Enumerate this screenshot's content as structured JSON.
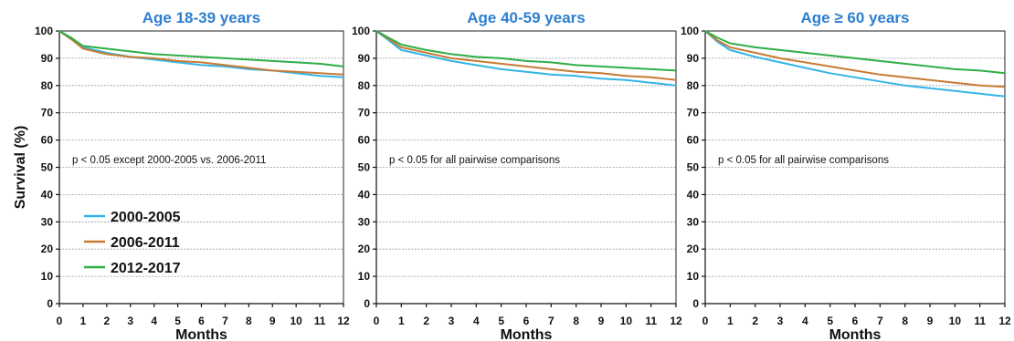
{
  "chart_data": [
    {
      "type": "line",
      "title": "Age 18-39 years",
      "xlabel": "Months",
      "ylabel": "Survival (%)",
      "xlim": [
        0,
        12
      ],
      "ylim": [
        0,
        100
      ],
      "x_ticks": [
        0,
        1,
        2,
        3,
        4,
        5,
        6,
        7,
        8,
        9,
        10,
        11,
        12
      ],
      "y_ticks": [
        0,
        10,
        20,
        30,
        40,
        50,
        60,
        70,
        80,
        90,
        100
      ],
      "grid": true,
      "legend_position": "bottom-left",
      "annotation": "p < 0.05 except 2000-2005 vs. 2006-2011",
      "x": [
        0,
        0.5,
        1,
        2,
        3,
        4,
        5,
        6,
        7,
        8,
        9,
        10,
        11,
        12
      ],
      "series": [
        {
          "name": "2000-2005",
          "color": "#33b5e5",
          "values": [
            100,
            97,
            94,
            92,
            90.5,
            89.5,
            88.5,
            87.5,
            87,
            86,
            85.5,
            84.5,
            83.5,
            83
          ]
        },
        {
          "name": "2006-2011",
          "color": "#c87b34",
          "values": [
            100,
            97,
            93.5,
            91.5,
            90.5,
            90,
            89,
            88.5,
            87.5,
            86.5,
            85.5,
            85,
            84.5,
            84
          ]
        },
        {
          "name": "2012-2017",
          "color": "#2fae47",
          "values": [
            100,
            97.5,
            94.5,
            93.5,
            92.5,
            91.5,
            91,
            90.5,
            90,
            89.5,
            89,
            88.5,
            88,
            87
          ]
        }
      ]
    },
    {
      "type": "line",
      "title": "Age 40-59 years",
      "xlabel": "Months",
      "ylabel": "",
      "xlim": [
        0,
        12
      ],
      "ylim": [
        0,
        100
      ],
      "x_ticks": [
        0,
        1,
        2,
        3,
        4,
        5,
        6,
        7,
        8,
        9,
        10,
        11,
        12
      ],
      "y_ticks": [
        0,
        10,
        20,
        30,
        40,
        50,
        60,
        70,
        80,
        90,
        100
      ],
      "grid": true,
      "annotation": "p < 0.05 for all pairwise comparisons",
      "x": [
        0,
        0.5,
        1,
        2,
        3,
        4,
        5,
        6,
        7,
        8,
        9,
        10,
        11,
        12
      ],
      "series": [
        {
          "name": "2000-2005",
          "color": "#33b5e5",
          "values": [
            100,
            96.5,
            93,
            91,
            89,
            87.5,
            86,
            85,
            84,
            83.5,
            82.5,
            82,
            81,
            80
          ]
        },
        {
          "name": "2006-2011",
          "color": "#c87b34",
          "values": [
            100,
            97,
            94,
            92,
            90,
            89,
            88,
            87,
            86,
            85,
            84.5,
            83.5,
            83,
            82
          ]
        },
        {
          "name": "2012-2017",
          "color": "#2fae47",
          "values": [
            100,
            97.5,
            95,
            93,
            91.5,
            90.5,
            90,
            89,
            88.5,
            87.5,
            87,
            86.5,
            86,
            85.5
          ]
        }
      ]
    },
    {
      "type": "line",
      "title": "Age ≥ 60 years",
      "xlabel": "Months",
      "ylabel": "",
      "xlim": [
        0,
        12
      ],
      "ylim": [
        0,
        100
      ],
      "x_ticks": [
        0,
        1,
        2,
        3,
        4,
        5,
        6,
        7,
        8,
        9,
        10,
        11,
        12
      ],
      "y_ticks": [
        0,
        10,
        20,
        30,
        40,
        50,
        60,
        70,
        80,
        90,
        100
      ],
      "grid": true,
      "annotation": "p < 0.05 for all pairwise comparisons",
      "x": [
        0,
        0.5,
        1,
        2,
        3,
        4,
        5,
        6,
        7,
        8,
        9,
        10,
        11,
        12
      ],
      "series": [
        {
          "name": "2000-2005",
          "color": "#33b5e5",
          "values": [
            100,
            96,
            93,
            90.5,
            88.5,
            86.5,
            84.5,
            83,
            81.5,
            80,
            79,
            78,
            77,
            76
          ]
        },
        {
          "name": "2006-2011",
          "color": "#c87b34",
          "values": [
            100,
            96.5,
            94,
            92,
            90,
            88.5,
            87,
            85.5,
            84,
            83,
            82,
            81,
            80,
            79.5
          ]
        },
        {
          "name": "2012-2017",
          "color": "#2fae47",
          "values": [
            100,
            97.5,
            95.5,
            94,
            93,
            92,
            91,
            90,
            89,
            88,
            87,
            86,
            85.5,
            84.5
          ]
        }
      ]
    }
  ]
}
